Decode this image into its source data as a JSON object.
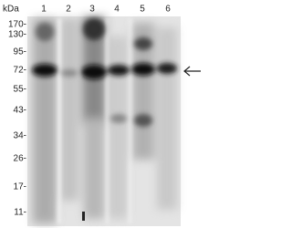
{
  "header": {
    "unit": "kDa"
  },
  "lanes": [
    "1",
    "2",
    "3",
    "4",
    "5",
    "6"
  ],
  "markers": [
    "170-",
    "130-",
    "95-",
    "72-",
    "55-",
    "43-",
    "34-",
    "26-",
    "17-",
    "11-"
  ]
}
